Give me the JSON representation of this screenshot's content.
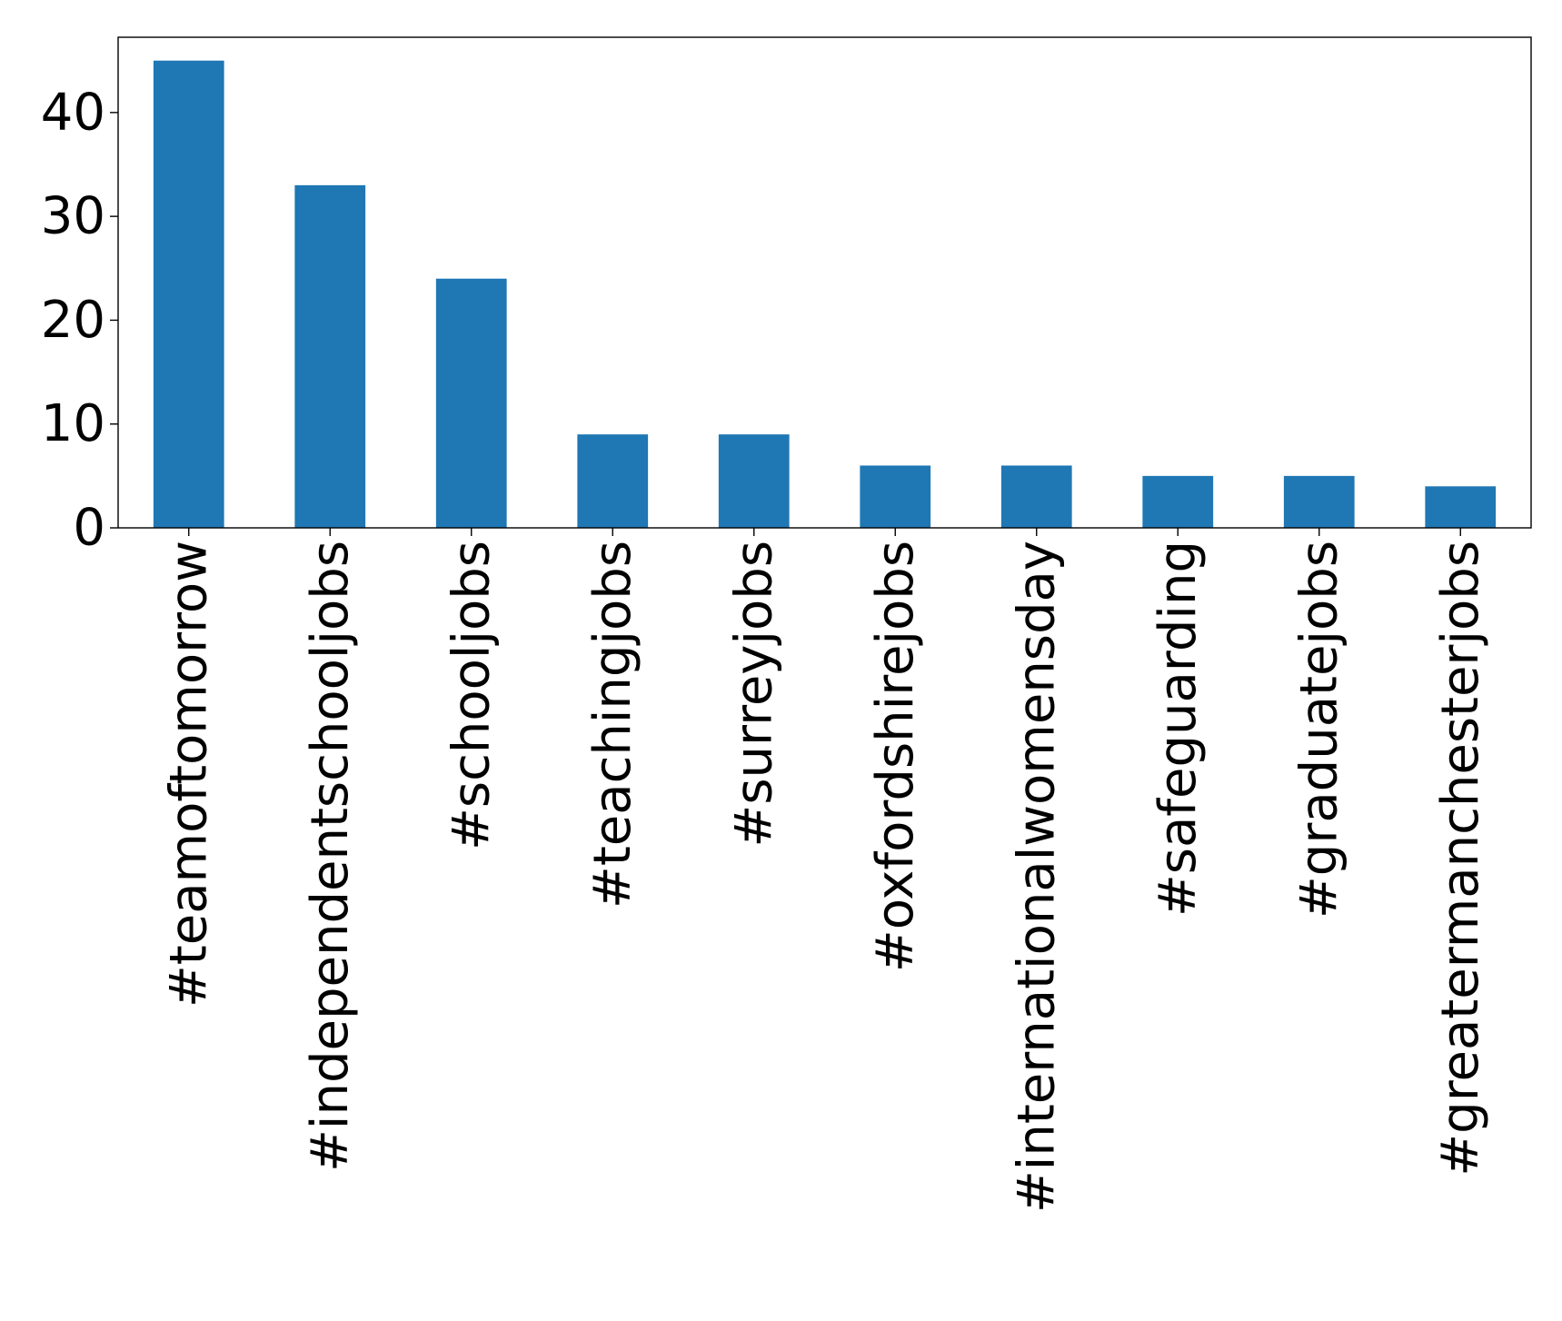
{
  "chart_data": {
    "type": "bar",
    "title": "",
    "xlabel": "",
    "ylabel": "",
    "categories": [
      "#teamoftomorrow",
      "#independentschooljobs",
      "#schooljobs",
      "#teachingjobs",
      "#surreyjobs",
      "#oxfordshirejobs",
      "#internationalwomensday",
      "#safeguarding",
      "#graduatejobs",
      "#greatermanchesterjobs"
    ],
    "values": [
      45,
      33,
      24,
      9,
      9,
      6,
      6,
      5,
      5,
      4
    ],
    "yticks": [
      0,
      10,
      20,
      30,
      40
    ],
    "ylim": [
      0,
      47.25
    ],
    "bar_color": "#1f77b4",
    "grid": false,
    "legend": "none"
  }
}
